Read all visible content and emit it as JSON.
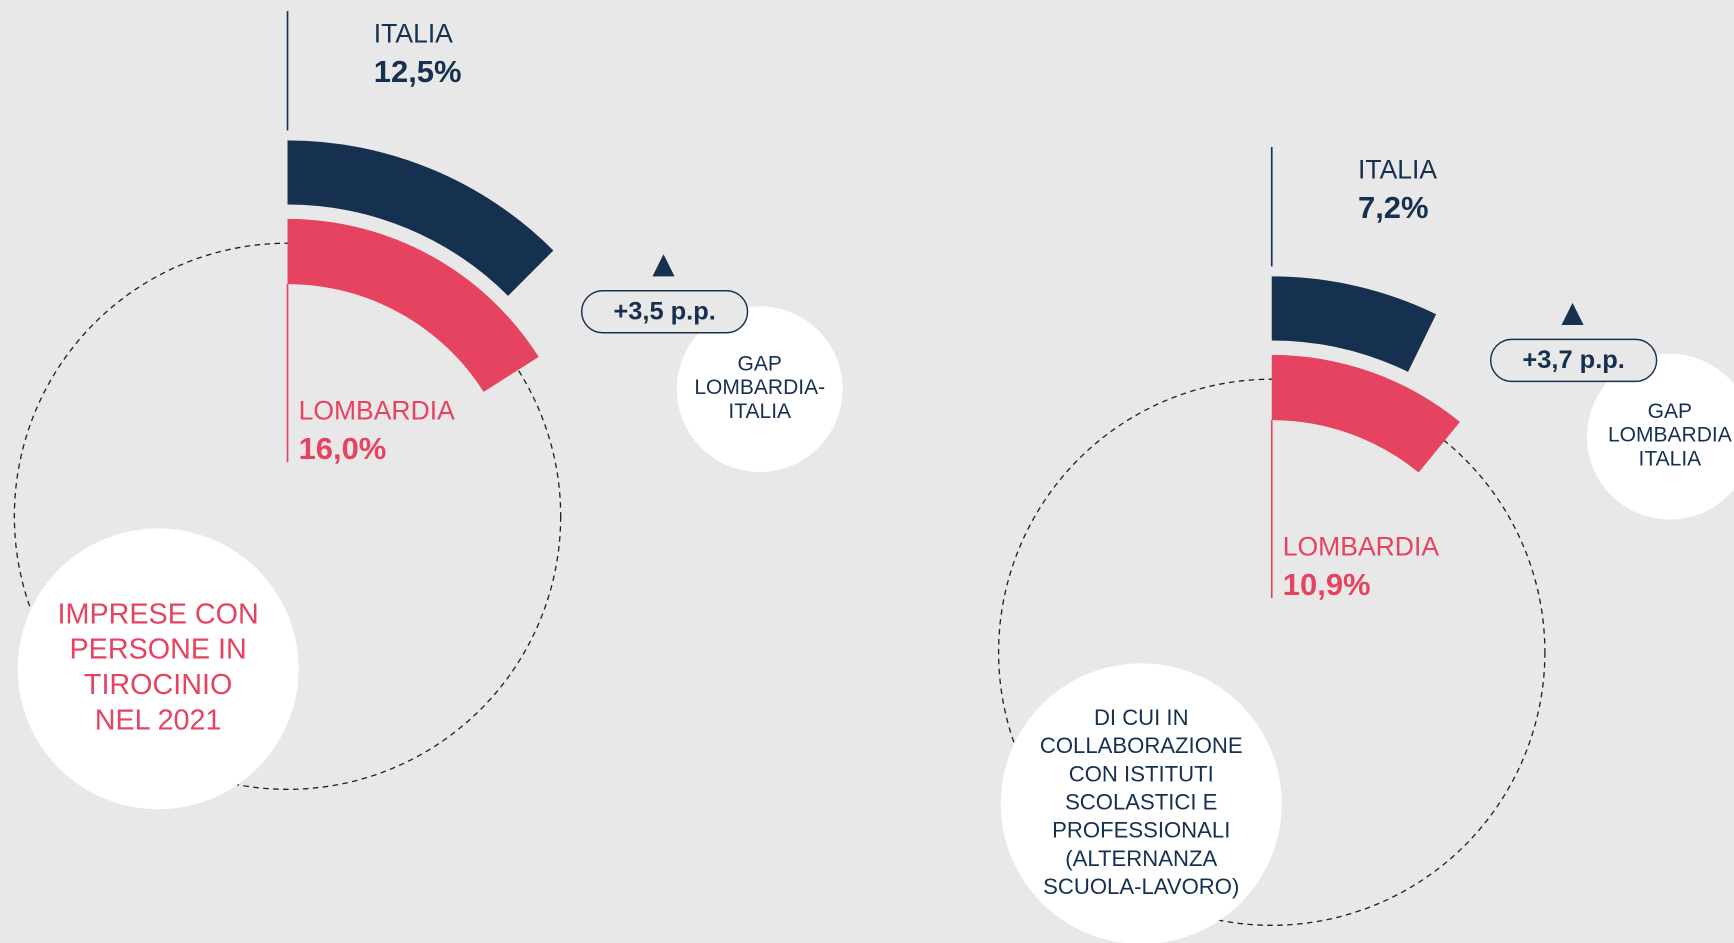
{
  "chart_data": [
    {
      "type": "radial_bar",
      "series": [
        {
          "name": "ITALIA",
          "color": "#16304f",
          "values": [
            12.5
          ],
          "value_labels": [
            "12,5%"
          ]
        },
        {
          "name": "LOMBARDIA",
          "color": "#e54360",
          "values": [
            16.0
          ],
          "value_labels": [
            "16,0%"
          ]
        }
      ],
      "ylim": [
        0,
        100
      ],
      "annotation": "+3,5 p.p.",
      "gap_label_lines": [
        "GAP",
        "LOMBARDIA-",
        "ITALIA"
      ],
      "label_lines": [
        "IMPRESE CON",
        "PERSONE IN",
        "TIROCINIO",
        "NEL 2021"
      ]
    },
    {
      "type": "radial_bar",
      "series": [
        {
          "name": "ITALIA",
          "color": "#16304f",
          "values": [
            7.2
          ],
          "value_labels": [
            "7,2%"
          ]
        },
        {
          "name": "LOMBARDIA",
          "color": "#e54360",
          "values": [
            10.9
          ],
          "value_labels": [
            "10,9%"
          ]
        }
      ],
      "ylim": [
        0,
        100
      ],
      "annotation": "+3,7 p.p.",
      "gap_label_lines": [
        "GAP",
        "LOMBARDIA",
        "ITALIA"
      ],
      "label_lines": [
        "DI CUI IN",
        "COLLABORAZIONE",
        "CON ISTITUTI",
        "SCOLASTICI E",
        "PROFESSIONALI",
        "(ALTERNANZA",
        "SCUOLA-LAVORO)"
      ]
    }
  ]
}
